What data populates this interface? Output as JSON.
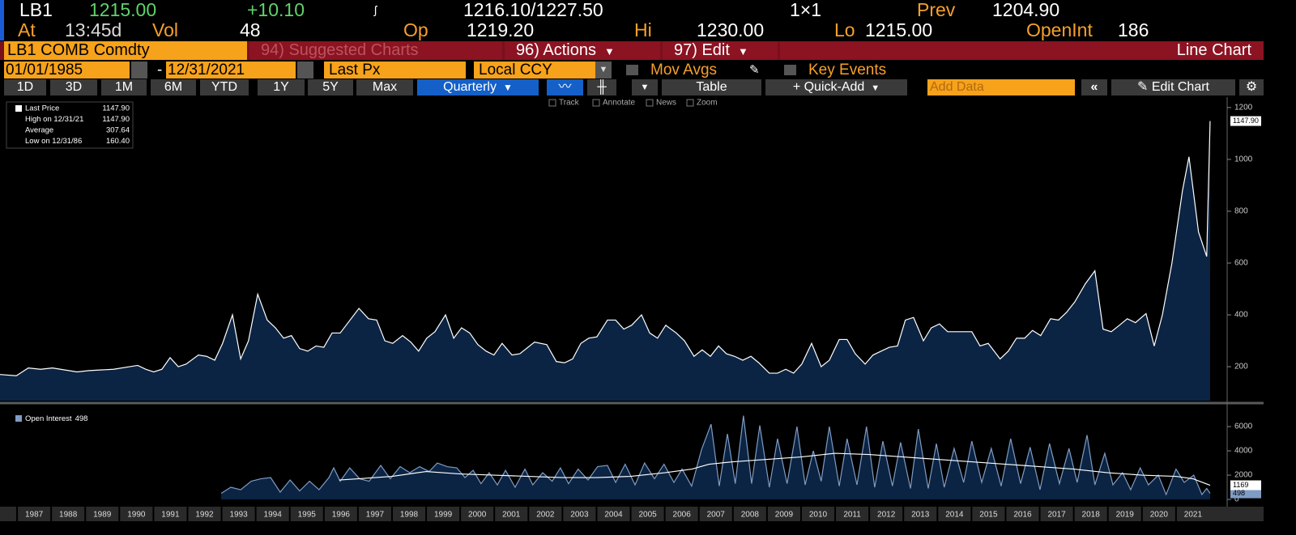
{
  "header": {
    "ticker": "LB1",
    "last": "1215.00",
    "change": "+10.10",
    "bid_ask": "1216.10/1227.50",
    "size": "1×1",
    "prev_label": "Prev",
    "prev": "1204.90",
    "at_label": "At",
    "time": "13:45d",
    "vol_label": "Vol",
    "vol": "48",
    "op_label": "Op",
    "op": "1219.20",
    "hi_label": "Hi",
    "hi": "1230.00",
    "lo_label": "Lo",
    "lo": "1215.00",
    "oi_label": "OpenInt",
    "oi": "186"
  },
  "toolbar": {
    "security": "LB1 COMB Comdty",
    "suggested": "94) Suggested Charts",
    "actions": "96) Actions",
    "edit": "97) Edit",
    "chart_type": "Line Chart",
    "start_date": "01/01/1985",
    "date_separator": "-",
    "end_date": "12/31/2021",
    "field": "Last Px",
    "currency": "Local CCY",
    "mov_avgs": "Mov Avgs",
    "key_events": "Key Events",
    "periods": [
      "1D",
      "3D",
      "1M",
      "6M",
      "YTD",
      "1Y",
      "5Y",
      "Max"
    ],
    "frequency": "Quarterly",
    "table": "Table",
    "quick_add": "+ Quick-Add",
    "add_data": "Add Data",
    "edit_chart": "Edit Chart",
    "tools": [
      "Track",
      "Annotate",
      "News",
      "Zoom"
    ]
  },
  "chart_data": [
    {
      "type": "area",
      "legend": [
        {
          "label": "Last Price",
          "value": "1147.90"
        },
        {
          "label": "High on 12/31/21",
          "value": "1147.90"
        },
        {
          "label": "Average",
          "value": "307.64"
        },
        {
          "label": "Low on 12/31/86",
          "value": "160.40"
        }
      ],
      "last_label": "1147.90",
      "xlim": [
        1986.5,
        2022.5
      ],
      "ylim": [
        69,
        1234
      ],
      "yticks": [
        200,
        400,
        600,
        800,
        1000,
        1200
      ],
      "series": [
        {
          "name": "Last Price",
          "color": "#ffffff",
          "fill": "#0c2443",
          "x": [
            1986.5,
            1986.98,
            1987.33,
            1987.69,
            1988.04,
            1988.76,
            1989.11,
            1989.83,
            1990.3,
            1990.54,
            1990.78,
            1991.01,
            1991.25,
            1991.49,
            1991.73,
            1991.96,
            1992.32,
            1992.56,
            1992.8,
            1993.03,
            1993.32,
            1993.56,
            1993.79,
            1994.06,
            1994.34,
            1994.58,
            1994.82,
            1995.05,
            1995.29,
            1995.53,
            1995.77,
            1996.0,
            1996.24,
            1996.48,
            1997.03,
            1997.31,
            1997.55,
            1997.79,
            1998.02,
            1998.31,
            1998.55,
            1998.78,
            1999.02,
            1999.26,
            1999.57,
            1999.81,
            2000.04,
            2000.28,
            2000.52,
            2000.76,
            2000.99,
            2001.23,
            2001.52,
            2001.75,
            2002.18,
            2002.54,
            2002.82,
            2003.06,
            2003.3,
            2003.54,
            2003.77,
            2004.01,
            2004.32,
            2004.56,
            2004.8,
            2005.03,
            2005.32,
            2005.56,
            2005.79,
            2006.03,
            2006.34,
            2006.58,
            2006.86,
            2007.1,
            2007.34,
            2007.58,
            2007.81,
            2008.05,
            2008.29,
            2008.53,
            2008.76,
            2009.07,
            2009.31,
            2009.55,
            2009.78,
            2010.02,
            2010.31,
            2010.59,
            2010.83,
            2011.12,
            2011.35,
            2011.59,
            2011.88,
            2012.11,
            2012.35,
            2012.59,
            2012.83,
            2013.06,
            2013.3,
            2013.59,
            2013.82,
            2014.06,
            2014.3,
            2014.66,
            2015.01,
            2015.25,
            2015.49,
            2015.84,
            2016.08,
            2016.32,
            2016.56,
            2016.79,
            2017.03,
            2017.32,
            2017.55,
            2017.79,
            2018.03,
            2018.34,
            2018.62,
            2018.86,
            2019.1,
            2019.34,
            2019.57,
            2019.81,
            2020.12,
            2020.36,
            2020.6,
            2020.88,
            2021.19,
            2021.38,
            2021.66,
            2021.9,
            2022.0
          ],
          "values": [
            170,
            165,
            195,
            190,
            195,
            180,
            185,
            190,
            200,
            205,
            190,
            180,
            190,
            235,
            200,
            210,
            245,
            240,
            225,
            290,
            400,
            230,
            300,
            480,
            380,
            350,
            310,
            320,
            270,
            260,
            280,
            275,
            330,
            330,
            425,
            385,
            380,
            300,
            290,
            320,
            295,
            260,
            310,
            335,
            400,
            310,
            350,
            330,
            285,
            260,
            245,
            290,
            245,
            250,
            295,
            285,
            220,
            215,
            230,
            290,
            310,
            315,
            380,
            380,
            345,
            360,
            400,
            330,
            310,
            360,
            330,
            300,
            240,
            265,
            240,
            280,
            250,
            240,
            225,
            240,
            215,
            175,
            175,
            190,
            175,
            210,
            290,
            200,
            225,
            305,
            305,
            250,
            210,
            245,
            260,
            275,
            280,
            380,
            390,
            300,
            350,
            365,
            335,
            335,
            335,
            280,
            290,
            230,
            260,
            310,
            310,
            340,
            320,
            385,
            380,
            410,
            450,
            520,
            570,
            345,
            335,
            360,
            385,
            370,
            405,
            280,
            400,
            600,
            880,
            1010,
            720,
            625,
            1147.9
          ]
        }
      ]
    },
    {
      "type": "area",
      "xlim": [
        1986.5,
        2022.5
      ],
      "ylim": [
        -530,
        7470
      ],
      "yticks": [
        0,
        2000,
        4000,
        6000
      ],
      "xticks": [
        1987,
        1988,
        1989,
        1990,
        1991,
        1992,
        1993,
        1994,
        1995,
        1996,
        1997,
        1998,
        1999,
        2000,
        2001,
        2002,
        2003,
        2004,
        2005,
        2006,
        2007,
        2008,
        2009,
        2010,
        2011,
        2012,
        2013,
        2014,
        2015,
        2016,
        2017,
        2018,
        2019,
        2020,
        2021
      ],
      "series": [
        {
          "name": "Open Interest",
          "color": "#7f9cc4",
          "fill": "#0c2443",
          "x": [
            1992.99,
            1993.27,
            1993.56,
            1993.87,
            1994.15,
            1994.44,
            1994.72,
            1995.01,
            1995.29,
            1995.58,
            1995.86,
            1996.15,
            1996.29,
            1996.48,
            1996.76,
            1997.05,
            1997.33,
            1997.67,
            1997.95,
            1998.24,
            1998.52,
            1998.81,
            1999.09,
            1999.33,
            1999.62,
            1999.9,
            2000.14,
            2000.38,
            2000.61,
            2000.85,
            2001.09,
            2001.33,
            2001.61,
            2001.9,
            2002.13,
            2002.42,
            2002.7,
            2002.94,
            2003.18,
            2003.46,
            2003.75,
            2004.03,
            2004.32,
            2004.56,
            2004.84,
            2005.13,
            2005.41,
            2005.7,
            2005.98,
            2006.27,
            2006.51,
            2006.79,
            2007.08,
            2007.36,
            2007.6,
            2007.84,
            2008.07,
            2008.31,
            2008.55,
            2008.79,
            2009.07,
            2009.31,
            2009.59,
            2009.88,
            2010.12,
            2010.36,
            2010.59,
            2010.83,
            2011.12,
            2011.35,
            2011.64,
            2011.92,
            2012.16,
            2012.4,
            2012.68,
            2012.92,
            2013.21,
            2013.44,
            2013.73,
            2013.97,
            2014.2,
            2014.49,
            2014.77,
            2015.01,
            2015.3,
            2015.58,
            2015.87,
            2016.15,
            2016.44,
            2016.72,
            2017.01,
            2017.29,
            2017.58,
            2017.86,
            2018.1,
            2018.39,
            2018.62,
            2018.91,
            2019.15,
            2019.43,
            2019.67,
            2019.95,
            2020.19,
            2020.48,
            2020.71,
            2021.0,
            2021.24,
            2021.52,
            2021.76,
            2021.9,
            2022.0
          ],
          "values": [
            500,
            1000,
            800,
            1500,
            1700,
            1800,
            600,
            1600,
            700,
            1500,
            800,
            1800,
            2600,
            1500,
            2600,
            1700,
            1500,
            2800,
            1700,
            2700,
            2200,
            2700,
            2300,
            3000,
            2700,
            2600,
            1800,
            2400,
            1300,
            2200,
            1200,
            2400,
            1000,
            2500,
            1200,
            2200,
            1500,
            2600,
            1300,
            2500,
            1600,
            2700,
            2800,
            1400,
            2900,
            1200,
            3000,
            1700,
            2900,
            1400,
            2500,
            1100,
            4100,
            6200,
            1100,
            5400,
            1300,
            6900,
            1300,
            6100,
            1000,
            5000,
            1300,
            6000,
            1200,
            4000,
            1500,
            6000,
            1100,
            5000,
            1200,
            6000,
            1000,
            4800,
            1100,
            4700,
            900,
            5800,
            900,
            4600,
            1000,
            4200,
            1400,
            4800,
            1400,
            4200,
            1100,
            5000,
            1300,
            4300,
            800,
            4600,
            1300,
            4200,
            1400,
            5300,
            1200,
            3800,
            1200,
            2200,
            800,
            2600,
            1200,
            2000,
            400,
            2500,
            1400,
            2000,
            400,
            900,
            498
          ]
        },
        {
          "color": "#ffffff",
          "x": [
            1996.45,
            1997,
            1998,
            1999,
            2000,
            2001,
            2002,
            2003,
            2004,
            2005,
            2006,
            2006.8,
            2007.3,
            2008,
            2009,
            2010,
            2011,
            2012,
            2013,
            2014,
            2015,
            2016,
            2017,
            2018,
            2019,
            2020,
            2021,
            2021.5,
            2022.0
          ],
          "values": [
            1600,
            1700,
            1900,
            2300,
            2100,
            2000,
            1900,
            1800,
            1800,
            1900,
            2200,
            2500,
            2900,
            3100,
            3300,
            3500,
            3800,
            3700,
            3500,
            3300,
            3100,
            2900,
            2700,
            2500,
            2200,
            2000,
            1900,
            1700,
            1169
          ]
        }
      ]
    }
  ]
}
